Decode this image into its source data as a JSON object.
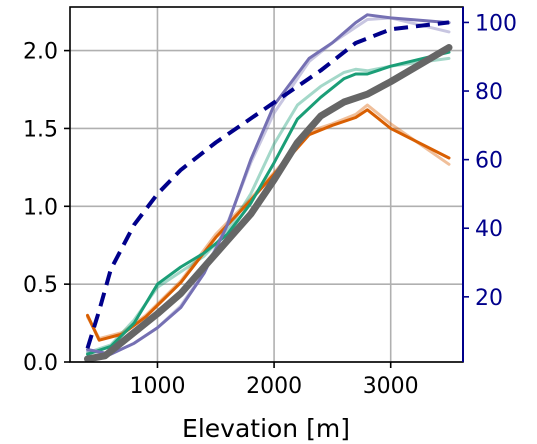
{
  "chart_data": {
    "type": "line",
    "xlabel": "Elevation [m]",
    "x_ticks": [
      1000,
      2000,
      3000
    ],
    "x_tick_labels": [
      "1000",
      "2000",
      "3000"
    ],
    "xlim": [
      250,
      3620
    ],
    "y_left": {
      "lim": [
        0.0,
        2.28
      ],
      "ticks": [
        0.0,
        0.5,
        1.0,
        1.5,
        2.0
      ],
      "tick_labels": [
        "0.0",
        "0.5",
        "1.0",
        "1.5",
        "2.0"
      ]
    },
    "y_right": {
      "lim": [
        1,
        104.5
      ],
      "ticks": [
        20,
        40,
        60,
        80,
        100
      ],
      "tick_labels": [
        "20",
        "40",
        "60",
        "80",
        "100"
      ],
      "color": "#00008b"
    },
    "grid": true,
    "legend": "none",
    "series": [
      {
        "axis": "left",
        "color": "#d95f02",
        "linewidth": 3,
        "opacity": 0.4,
        "x": [
          400,
          500,
          700,
          900,
          1200,
          1500,
          1800,
          2100,
          2300,
          2500,
          2700,
          2800,
          3000,
          3500
        ],
        "y": [
          0.29,
          0.15,
          0.19,
          0.3,
          0.52,
          0.82,
          1.05,
          1.3,
          1.48,
          1.53,
          1.59,
          1.65,
          1.53,
          1.27
        ]
      },
      {
        "axis": "left",
        "color": "#1b9e77",
        "linewidth": 3,
        "opacity": 0.4,
        "x": [
          400,
          600,
          800,
          1000,
          1200,
          1400,
          1600,
          1800,
          2000,
          2200,
          2400,
          2600,
          2700,
          2800,
          3000,
          3500
        ],
        "y": [
          0.06,
          0.11,
          0.27,
          0.48,
          0.58,
          0.68,
          0.84,
          1.08,
          1.4,
          1.65,
          1.77,
          1.86,
          1.88,
          1.87,
          1.9,
          1.95
        ]
      },
      {
        "axis": "left",
        "color": "#7570b3",
        "linewidth": 3,
        "opacity": 0.4,
        "x": [
          400,
          600,
          800,
          1000,
          1200,
          1400,
          1600,
          1800,
          2000,
          2200,
          2300,
          2500,
          2700,
          2800,
          3000,
          3500
        ],
        "y": [
          0.07,
          0.05,
          0.12,
          0.22,
          0.36,
          0.58,
          0.89,
          1.28,
          1.6,
          1.82,
          1.93,
          2.05,
          2.15,
          2.2,
          2.21,
          2.12
        ]
      },
      {
        "axis": "left",
        "color": "#d95f02",
        "linewidth": 3,
        "opacity": 1,
        "x": [
          400,
          500,
          700,
          900,
          1200,
          1500,
          1800,
          2100,
          2300,
          2500,
          2700,
          2800,
          3000,
          3500
        ],
        "y": [
          0.3,
          0.14,
          0.18,
          0.29,
          0.51,
          0.8,
          1.04,
          1.29,
          1.46,
          1.52,
          1.57,
          1.62,
          1.5,
          1.31
        ]
      },
      {
        "axis": "left",
        "color": "#1b9e77",
        "linewidth": 3,
        "opacity": 1,
        "x": [
          400,
          600,
          800,
          1000,
          1200,
          1400,
          1600,
          1800,
          2000,
          2200,
          2400,
          2600,
          2700,
          2800,
          3000,
          3500
        ],
        "y": [
          0.05,
          0.1,
          0.25,
          0.5,
          0.61,
          0.7,
          0.82,
          1.02,
          1.28,
          1.56,
          1.7,
          1.82,
          1.85,
          1.85,
          1.9,
          1.99
        ]
      },
      {
        "axis": "left",
        "color": "#7570b3",
        "linewidth": 3,
        "opacity": 1,
        "x": [
          400,
          600,
          800,
          1000,
          1200,
          1400,
          1600,
          1800,
          2000,
          2200,
          2300,
          2500,
          2700,
          2800,
          3000,
          3500
        ],
        "y": [
          0.08,
          0.05,
          0.12,
          0.22,
          0.35,
          0.57,
          0.88,
          1.3,
          1.65,
          1.85,
          1.95,
          2.05,
          2.18,
          2.23,
          2.21,
          2.18
        ]
      },
      {
        "axis": "left",
        "color": "#666666",
        "linewidth": 7,
        "opacity": 1,
        "x": [
          400,
          550,
          750,
          1000,
          1200,
          1400,
          1600,
          1800,
          2000,
          2200,
          2400,
          2600,
          2800,
          3000,
          3500
        ],
        "y": [
          0.02,
          0.04,
          0.16,
          0.31,
          0.44,
          0.61,
          0.78,
          0.95,
          1.17,
          1.41,
          1.58,
          1.67,
          1.72,
          1.8,
          2.02
        ]
      },
      {
        "axis": "right",
        "color": "#00008b",
        "linewidth": 4,
        "opacity": 1,
        "dashed": true,
        "x": [
          400,
          500,
          600,
          800,
          1000,
          1200,
          1500,
          1800,
          2100,
          2400,
          2700,
          3000,
          3500
        ],
        "y": [
          5,
          16,
          28,
          41,
          50,
          57,
          65,
          72,
          79,
          86,
          94,
          98,
          100
        ]
      }
    ]
  }
}
